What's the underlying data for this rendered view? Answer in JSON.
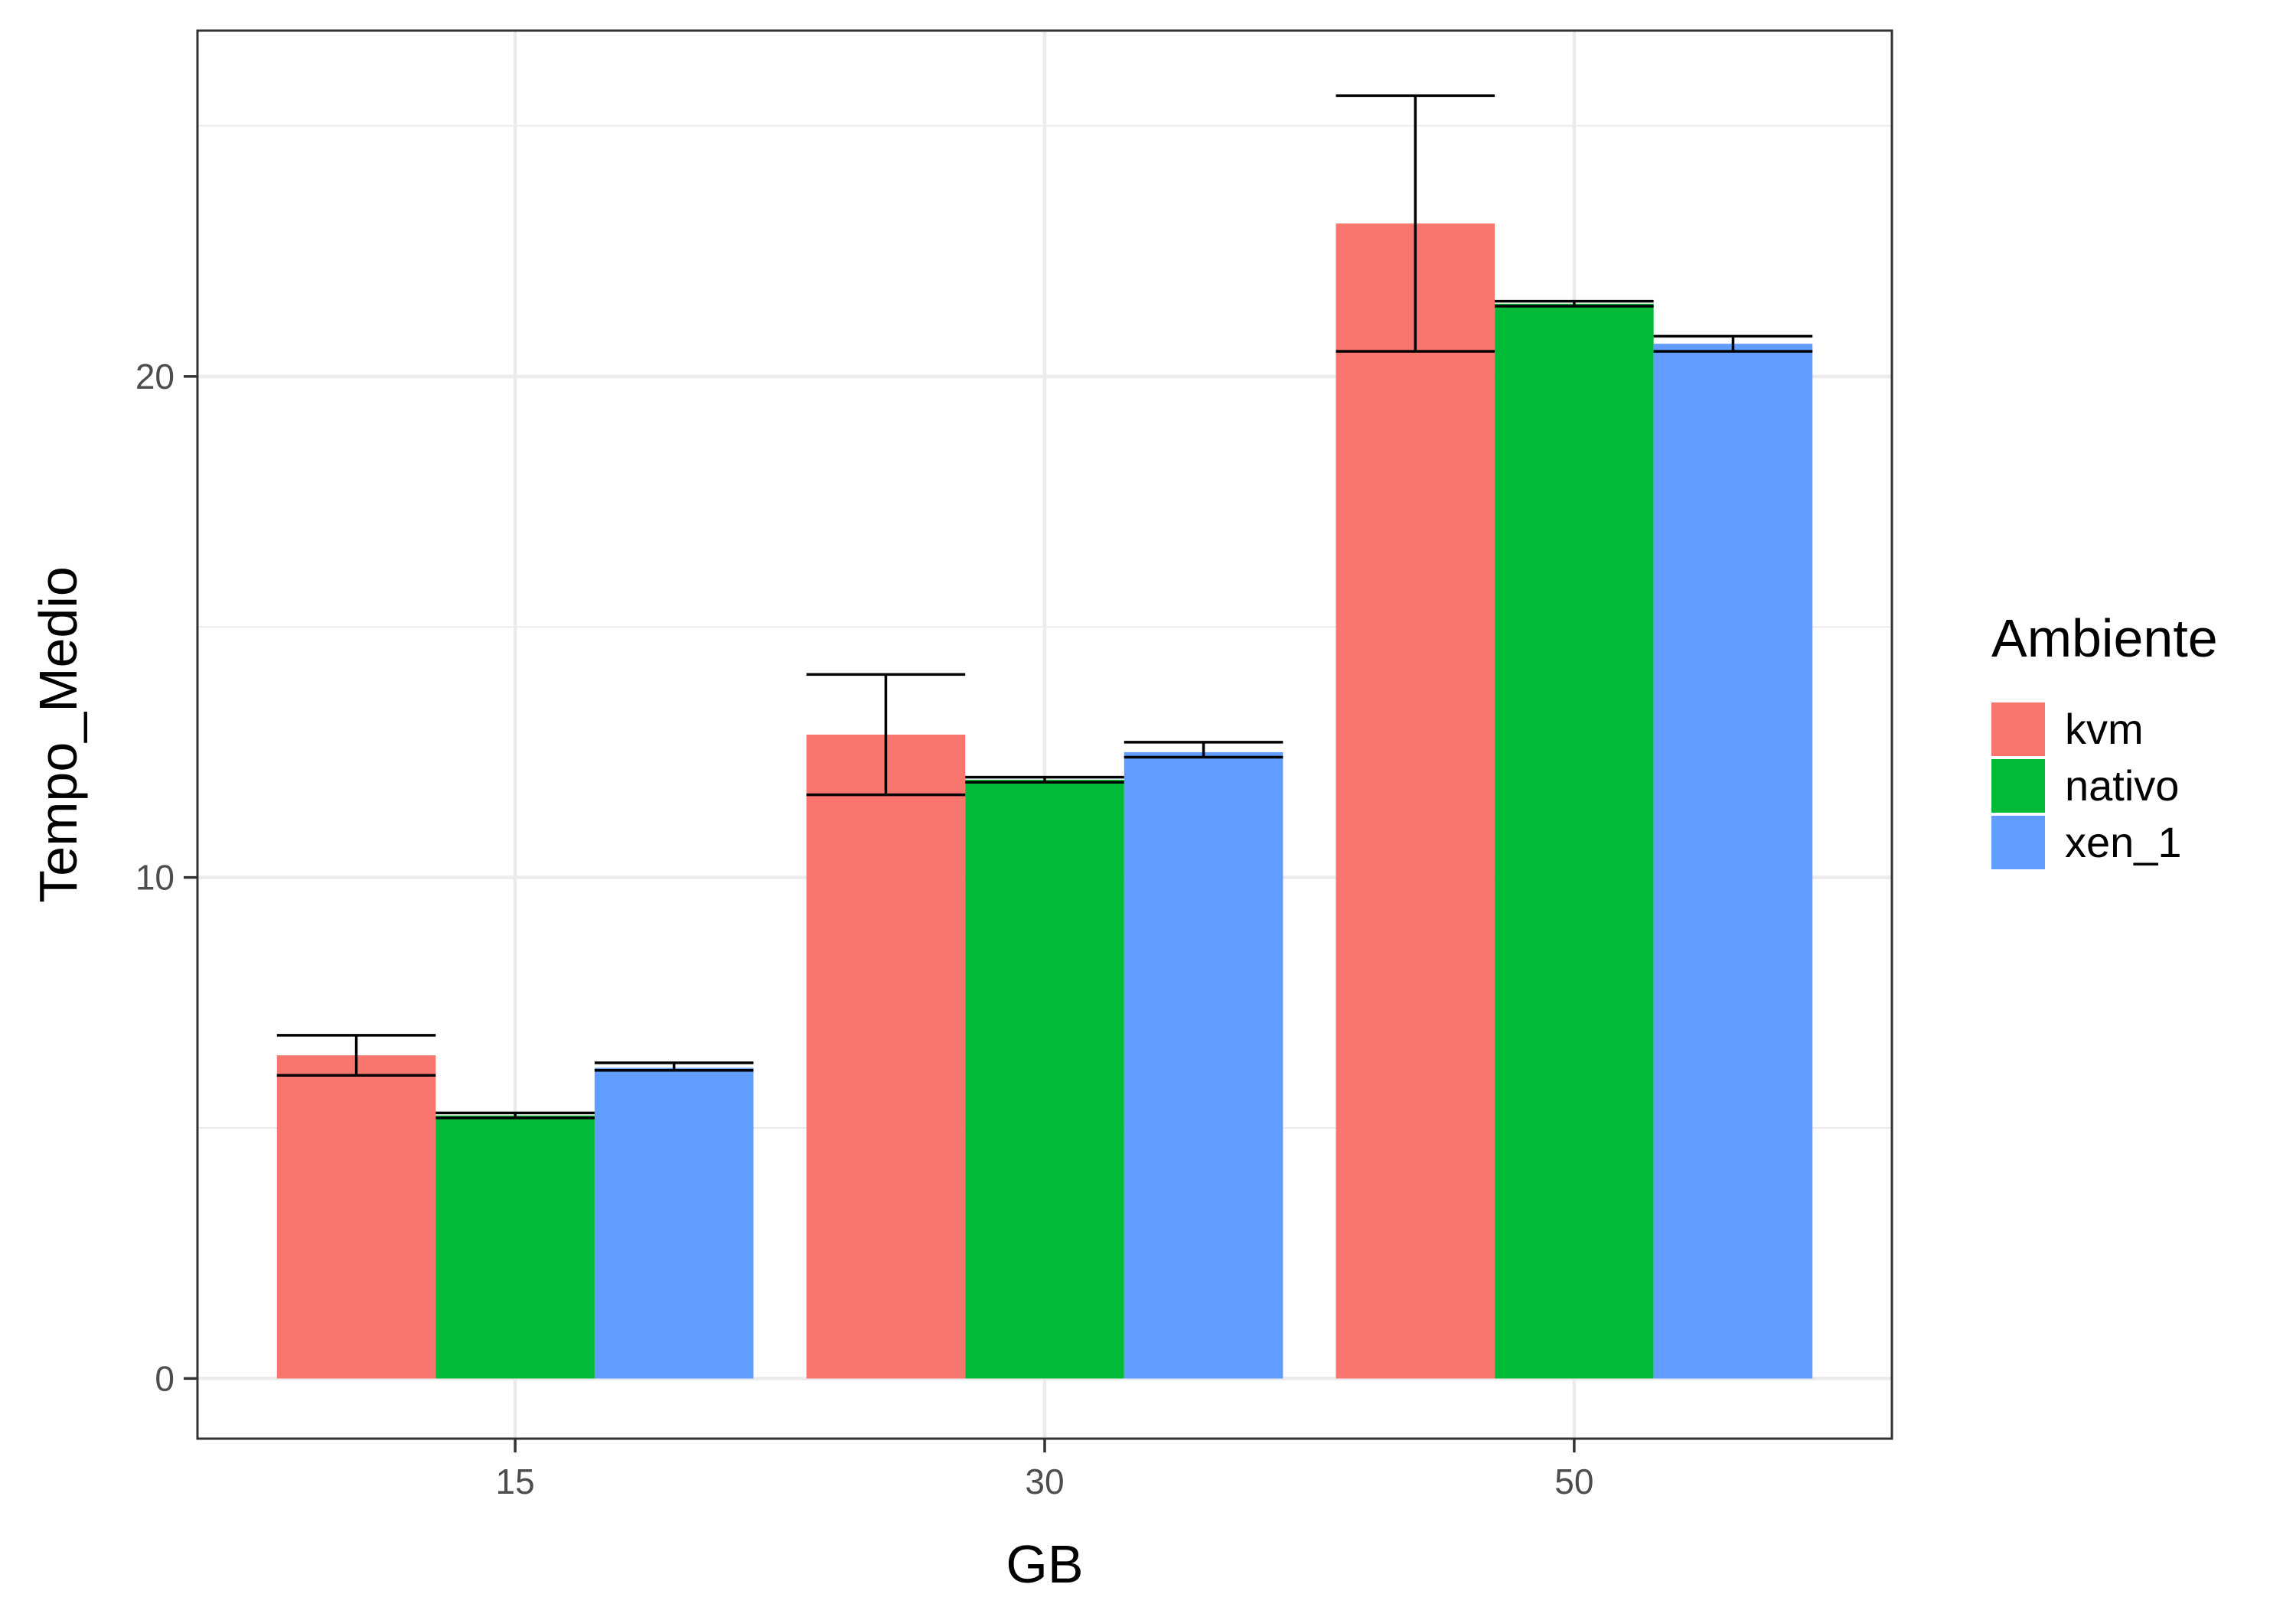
{
  "chart_data": {
    "type": "bar",
    "xlabel": "GB",
    "ylabel": "Tempo_Medio",
    "categories": [
      "15",
      "30",
      "50"
    ],
    "ylim": [
      -1.2,
      26.9
    ],
    "y_ticks": [
      0,
      10,
      20
    ],
    "y_tick_labels": [
      "0",
      "10",
      "20"
    ],
    "grid": true,
    "legend": {
      "title": "Ambiente",
      "position": "right"
    },
    "series": [
      {
        "name": "kvm",
        "color": "#F8766D",
        "values": [
          6.45,
          12.85,
          23.05
        ],
        "err_low": [
          6.05,
          11.65,
          20.5
        ],
        "err_high": [
          6.85,
          14.05,
          25.6
        ]
      },
      {
        "name": "nativo",
        "color": "#00BA38",
        "values": [
          5.25,
          11.95,
          21.45
        ],
        "err_low": [
          5.2,
          11.9,
          21.4
        ],
        "err_high": [
          5.3,
          12.0,
          21.5
        ]
      },
      {
        "name": "xen_1",
        "color": "#619CFF",
        "values": [
          6.2,
          12.5,
          20.65
        ],
        "err_low": [
          6.15,
          12.4,
          20.5
        ],
        "err_high": [
          6.3,
          12.7,
          20.8
        ]
      }
    ]
  }
}
